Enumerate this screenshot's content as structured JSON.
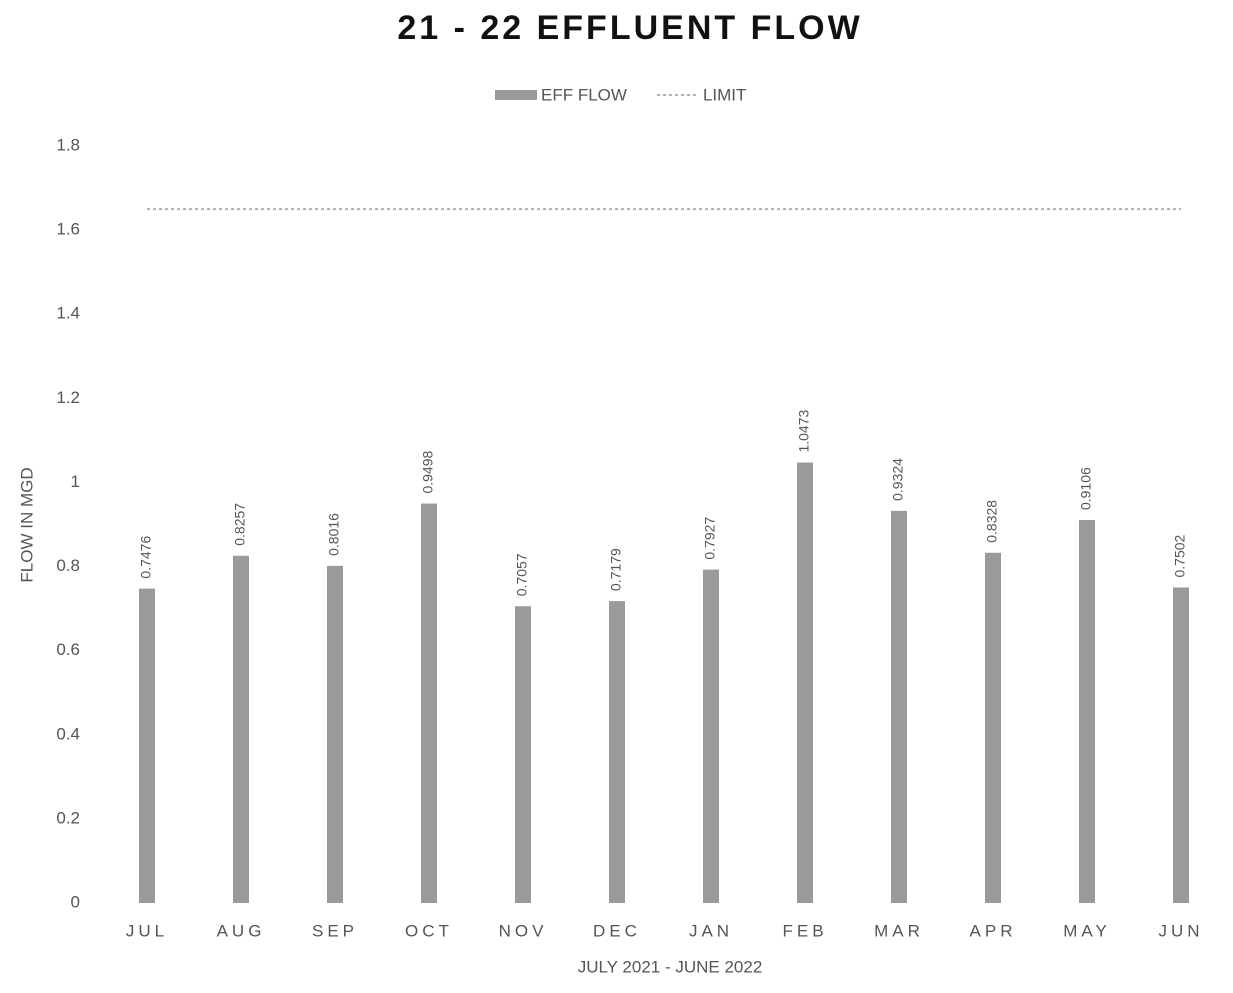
{
  "chart_data": {
    "type": "bar",
    "title": "21 - 22 EFFLUENT FLOW",
    "x_label": "JULY 2021 - JUNE 2022",
    "y_label": "FLOW IN MGD",
    "categories": [
      "JUL",
      "AUG",
      "SEP",
      "OCT",
      "NOV",
      "DEC",
      "JAN",
      "FEB",
      "MAR",
      "APR",
      "MAY",
      "JUN"
    ],
    "series": [
      {
        "name": "EFF FLOW",
        "type": "bar",
        "color": "#9a9a9a",
        "values": [
          0.7476,
          0.8257,
          0.8016,
          0.9498,
          0.7057,
          0.7179,
          0.7927,
          1.0473,
          0.9324,
          0.8328,
          0.9106,
          0.7502
        ]
      },
      {
        "name": "LIMIT",
        "type": "line",
        "color": "#b0b0b0",
        "values": [
          1.65,
          1.65,
          1.65,
          1.65,
          1.65,
          1.65,
          1.65,
          1.65,
          1.65,
          1.65,
          1.65,
          1.65
        ]
      }
    ],
    "ylim": [
      0,
      1.8
    ],
    "yticks": [
      0,
      0.2,
      0.4,
      0.6,
      0.8,
      1,
      1.2,
      1.4,
      1.6,
      1.8
    ],
    "grid": false,
    "legend": "top",
    "data_labels": true
  }
}
